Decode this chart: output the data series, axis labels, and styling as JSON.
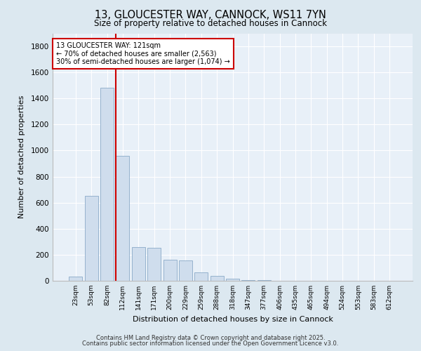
{
  "title": "13, GLOUCESTER WAY, CANNOCK, WS11 7YN",
  "subtitle": "Size of property relative to detached houses in Cannock",
  "xlabel": "Distribution of detached houses by size in Cannock",
  "ylabel": "Number of detached properties",
  "categories": [
    "23sqm",
    "53sqm",
    "82sqm",
    "112sqm",
    "141sqm",
    "171sqm",
    "200sqm",
    "229sqm",
    "259sqm",
    "288sqm",
    "318sqm",
    "347sqm",
    "377sqm",
    "406sqm",
    "435sqm",
    "465sqm",
    "494sqm",
    "524sqm",
    "553sqm",
    "583sqm",
    "612sqm"
  ],
  "values": [
    35,
    650,
    1480,
    960,
    260,
    255,
    160,
    155,
    65,
    38,
    18,
    5,
    3,
    1,
    0,
    0,
    0,
    0,
    0,
    0,
    0
  ],
  "bar_color": "#cfdded",
  "bar_edge_color": "#8aaac8",
  "vline_color": "#cc0000",
  "annotation_text": "13 GLOUCESTER WAY: 121sqm\n← 70% of detached houses are smaller (2,563)\n30% of semi-detached houses are larger (1,074) →",
  "annotation_box_color": "#cc0000",
  "ylim": [
    0,
    1900
  ],
  "yticks": [
    0,
    200,
    400,
    600,
    800,
    1000,
    1200,
    1400,
    1600,
    1800
  ],
  "footer_line1": "Contains HM Land Registry data © Crown copyright and database right 2025.",
  "footer_line2": "Contains public sector information licensed under the Open Government Licence v3.0.",
  "bg_color": "#dce8f0",
  "plot_bg_color": "#e8f0f8"
}
